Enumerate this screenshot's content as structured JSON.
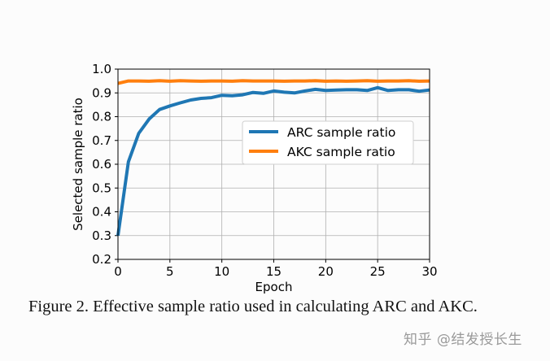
{
  "chart_data": {
    "type": "line",
    "xlabel": "Epoch",
    "ylabel": "Selected sample ratio",
    "xlim": [
      0,
      30
    ],
    "ylim": [
      0.2,
      1.0
    ],
    "xticks": [
      "0",
      "5",
      "10",
      "15",
      "20",
      "25",
      "30"
    ],
    "yticks": [
      "0.2",
      "0.3",
      "0.4",
      "0.5",
      "0.6",
      "0.7",
      "0.8",
      "0.9",
      "1.0"
    ],
    "grid": true,
    "legend_position": "center-right",
    "series": [
      {
        "name": "ARC sample ratio",
        "color": "#1f77b4",
        "x": [
          0,
          1,
          2,
          3,
          4,
          5,
          6,
          7,
          8,
          9,
          10,
          11,
          12,
          13,
          14,
          15,
          16,
          17,
          18,
          19,
          20,
          21,
          22,
          23,
          24,
          25,
          26,
          27,
          28,
          29,
          30
        ],
        "values": [
          0.3,
          0.61,
          0.73,
          0.79,
          0.83,
          0.845,
          0.858,
          0.87,
          0.877,
          0.88,
          0.89,
          0.888,
          0.892,
          0.902,
          0.898,
          0.908,
          0.903,
          0.9,
          0.908,
          0.915,
          0.91,
          0.912,
          0.913,
          0.913,
          0.91,
          0.922,
          0.91,
          0.913,
          0.913,
          0.907,
          0.912
        ]
      },
      {
        "name": "AKC sample ratio",
        "color": "#ff7f0e",
        "x": [
          0,
          1,
          2,
          3,
          4,
          5,
          6,
          7,
          8,
          9,
          10,
          11,
          12,
          13,
          14,
          15,
          16,
          17,
          18,
          19,
          20,
          21,
          22,
          23,
          24,
          25,
          26,
          27,
          28,
          29,
          30
        ],
        "values": [
          0.94,
          0.95,
          0.95,
          0.949,
          0.951,
          0.949,
          0.951,
          0.95,
          0.949,
          0.95,
          0.95,
          0.949,
          0.951,
          0.95,
          0.95,
          0.95,
          0.949,
          0.95,
          0.95,
          0.951,
          0.949,
          0.95,
          0.949,
          0.95,
          0.951,
          0.949,
          0.95,
          0.95,
          0.951,
          0.949,
          0.95
        ]
      }
    ]
  },
  "caption": "Figure 2. Effective sample ratio used in calculating ARC and AKC.",
  "watermark": "知乎 @结发授长生"
}
